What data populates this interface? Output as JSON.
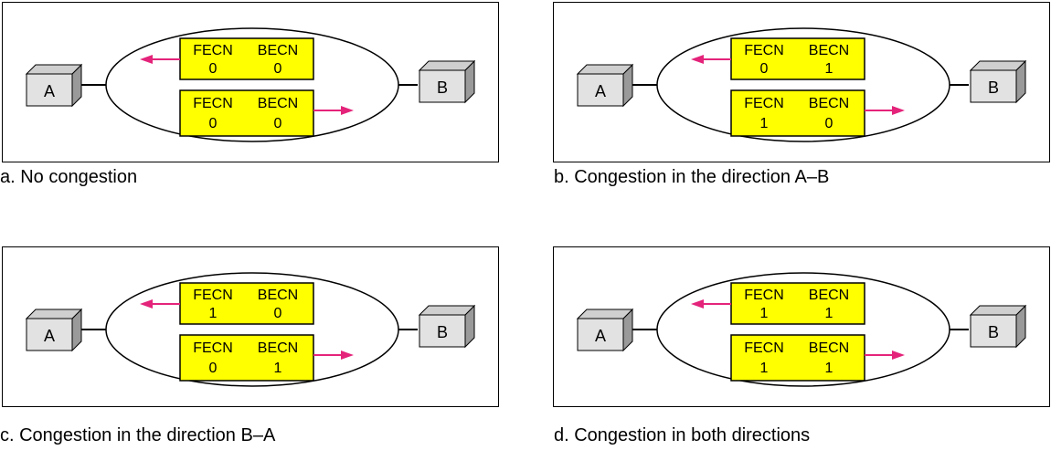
{
  "colors": {
    "frame_fill": "#ffff00",
    "arrow": "#e4237a",
    "box_front": "#e2e2e2",
    "box_side": "#9a9a9a",
    "box_top": "#cfcfcf"
  },
  "panels": [
    {
      "caption": "a. No congestion",
      "node_a": "A",
      "node_b": "B",
      "frames": [
        {
          "h1": "FECN",
          "h2": "BECN",
          "fecn": "0",
          "becn": "0"
        },
        {
          "h1": "FECN",
          "h2": "BECN",
          "fecn": "0",
          "becn": "0"
        }
      ]
    },
    {
      "caption": "b. Congestion in the direction A–B",
      "node_a": "A",
      "node_b": "B",
      "frames": [
        {
          "h1": "FECN",
          "h2": "BECN",
          "fecn": "0",
          "becn": "1"
        },
        {
          "h1": "FECN",
          "h2": "BECN",
          "fecn": "1",
          "becn": "0"
        }
      ]
    },
    {
      "caption": "c. Congestion in the direction B–A",
      "node_a": "A",
      "node_b": "B",
      "frames": [
        {
          "h1": "FECN",
          "h2": "BECN",
          "fecn": "1",
          "becn": "0"
        },
        {
          "h1": "FECN",
          "h2": "BECN",
          "fecn": "0",
          "becn": "1"
        }
      ]
    },
    {
      "caption": "d. Congestion in both directions",
      "node_a": "A",
      "node_b": "B",
      "frames": [
        {
          "h1": "FECN",
          "h2": "BECN",
          "fecn": "1",
          "becn": "1"
        },
        {
          "h1": "FECN",
          "h2": "BECN",
          "fecn": "1",
          "becn": "1"
        }
      ]
    }
  ]
}
